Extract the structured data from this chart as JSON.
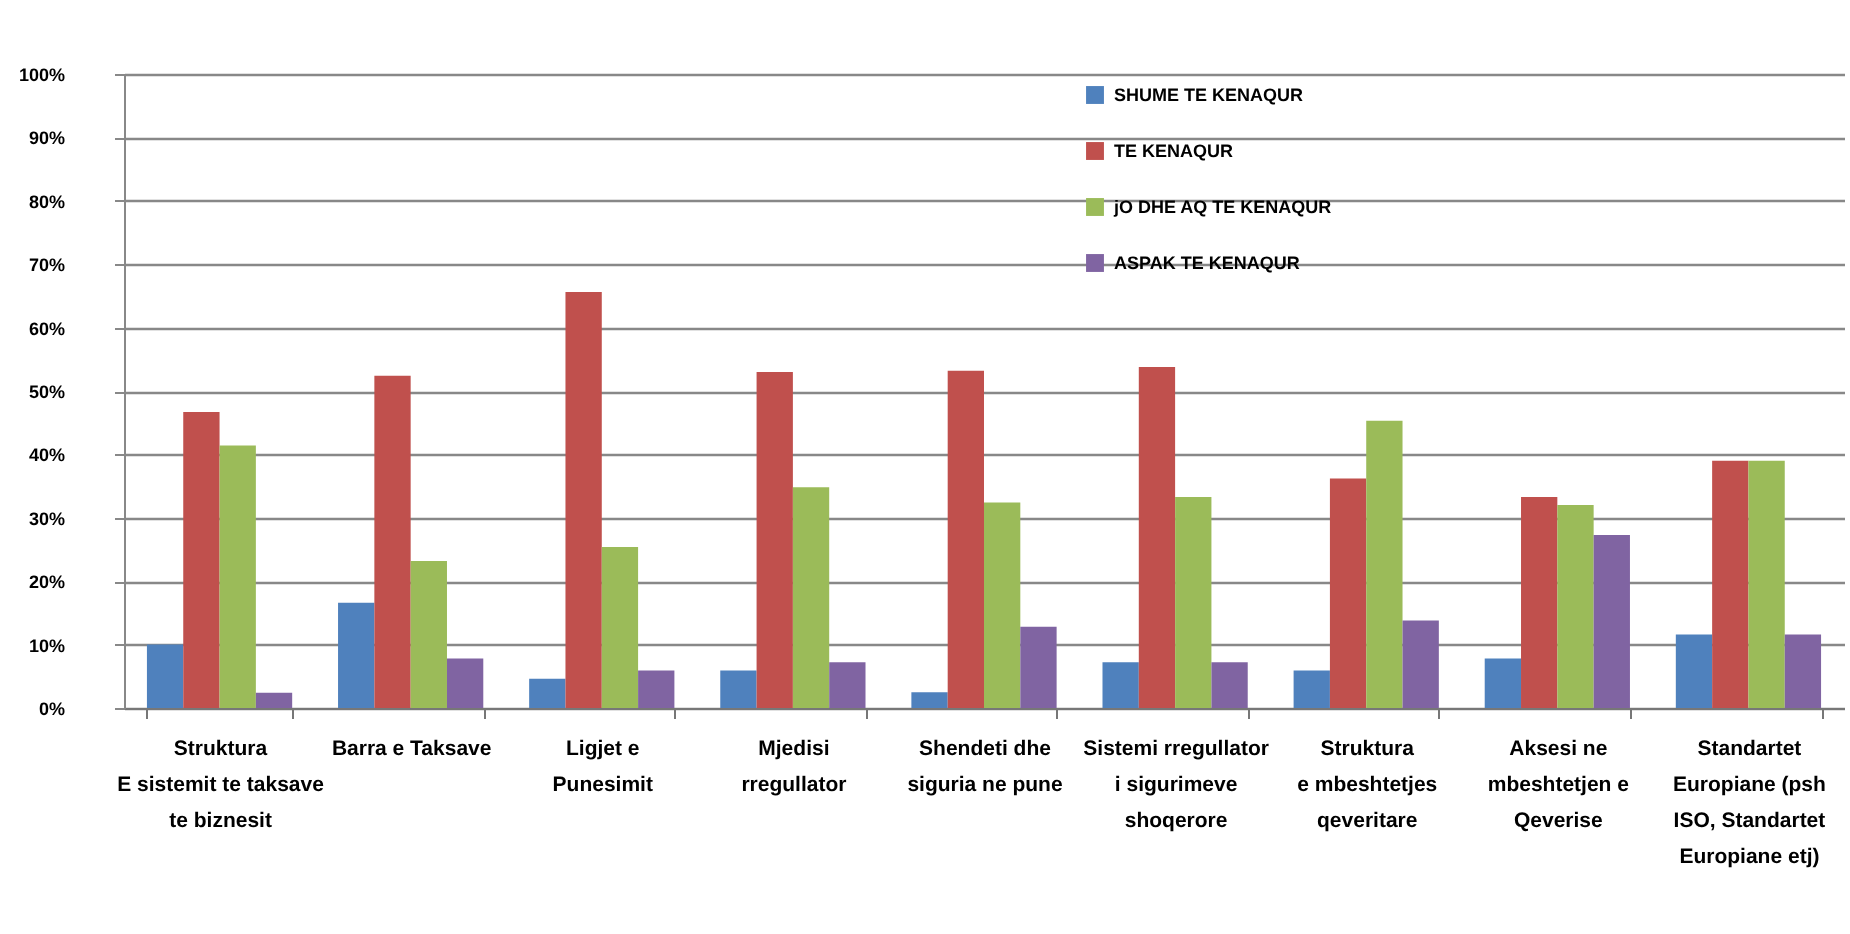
{
  "chart_data": {
    "type": "bar",
    "categories": [
      "Struktura\nE  sistemit te taksave\nte biznesit",
      "Barra e Taksave",
      "Ligjet e\nPunesimit",
      "Mjedisi\nrregullator",
      "Shendeti dhe\nsiguria ne pune",
      "Sistemi rregullator\ni sigurimeve\nshoqerore",
      "Struktura\ne mbeshtetjes\nqeveritare",
      "Aksesi ne\nmbeshtetjen e\nQeverise",
      "Standartet\nEuropiane (psh\nISO, Standartet\nEuropiane etj)"
    ],
    "series": [
      {
        "name": "SHUME TE KENAQUR",
        "color": "#4f81bd",
        "values": [
          10,
          16.6,
          4.6,
          5.9,
          2.5,
          7.2,
          5.9,
          7.8,
          11.6
        ]
      },
      {
        "name": "TE KENAQUR",
        "color": "#c0504d",
        "values": [
          46.7,
          52.4,
          65.6,
          53,
          53.2,
          53.8,
          36.2,
          33.3,
          39
        ]
      },
      {
        "name": "jO DHE AQ TE KENAQUR",
        "color": "#9bbb59",
        "values": [
          41.4,
          23.2,
          25.4,
          34.8,
          32.4,
          33.3,
          45.3,
          32,
          39
        ]
      },
      {
        "name": "ASPAK TE KENAQUR",
        "color": "#8064a2",
        "values": [
          2.4,
          7.8,
          5.9,
          7.2,
          12.8,
          7.2,
          13.8,
          27.3,
          11.6
        ]
      }
    ],
    "ylim": [
      0,
      100
    ],
    "yticks": [
      {
        "value": 0,
        "label": "0%"
      },
      {
        "value": 10,
        "label": "10%"
      },
      {
        "value": 20,
        "label": "20%"
      },
      {
        "value": 30,
        "label": "30%"
      },
      {
        "value": 40,
        "label": "40%"
      },
      {
        "value": 50,
        "label": "50%"
      },
      {
        "value": 60,
        "label": "60%"
      },
      {
        "value": 70,
        "label": "70%"
      },
      {
        "value": 80,
        "label": "80%"
      },
      {
        "value": 90,
        "label": "90%"
      },
      {
        "value": 100,
        "label": "100%"
      }
    ],
    "grid": "y",
    "legend": "top"
  }
}
